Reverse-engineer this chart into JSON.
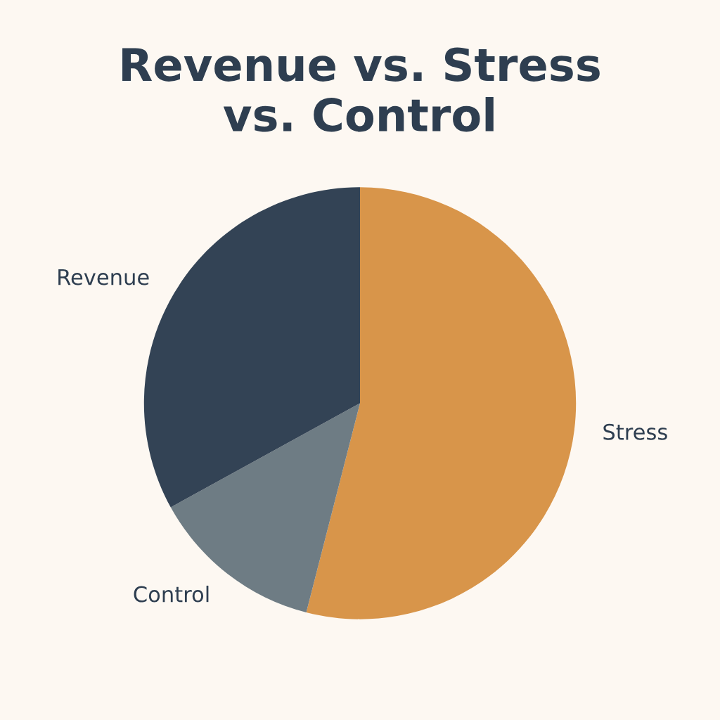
{
  "chart_data": {
    "type": "pie",
    "title": "Revenue vs. Stress\nvs. Control",
    "categories": [
      "Stress",
      "Control",
      "Revenue"
    ],
    "values": [
      54,
      13,
      33
    ],
    "colors": [
      "#d8954a",
      "#6e7c84",
      "#334355"
    ]
  }
}
